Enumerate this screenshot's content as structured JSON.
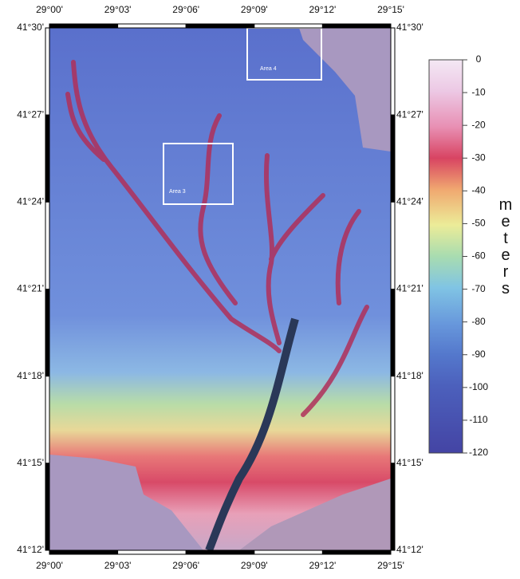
{
  "map": {
    "lon_labels": [
      "29°00'",
      "29°03'",
      "29°06'",
      "29°09'",
      "29°12'",
      "29°15'"
    ],
    "lat_labels": [
      "41°30'",
      "41°27'",
      "41°24'",
      "41°21'",
      "41°18'",
      "41°15'",
      "41°12'"
    ],
    "areas": [
      {
        "label": "Area 4"
      },
      {
        "label": "Area 3"
      }
    ],
    "colorbar": {
      "ticks": [
        0,
        -10,
        -20,
        -30,
        -40,
        -50,
        -60,
        -70,
        -80,
        -90,
        -100,
        -110,
        -120
      ],
      "unit": "meters"
    }
  }
}
